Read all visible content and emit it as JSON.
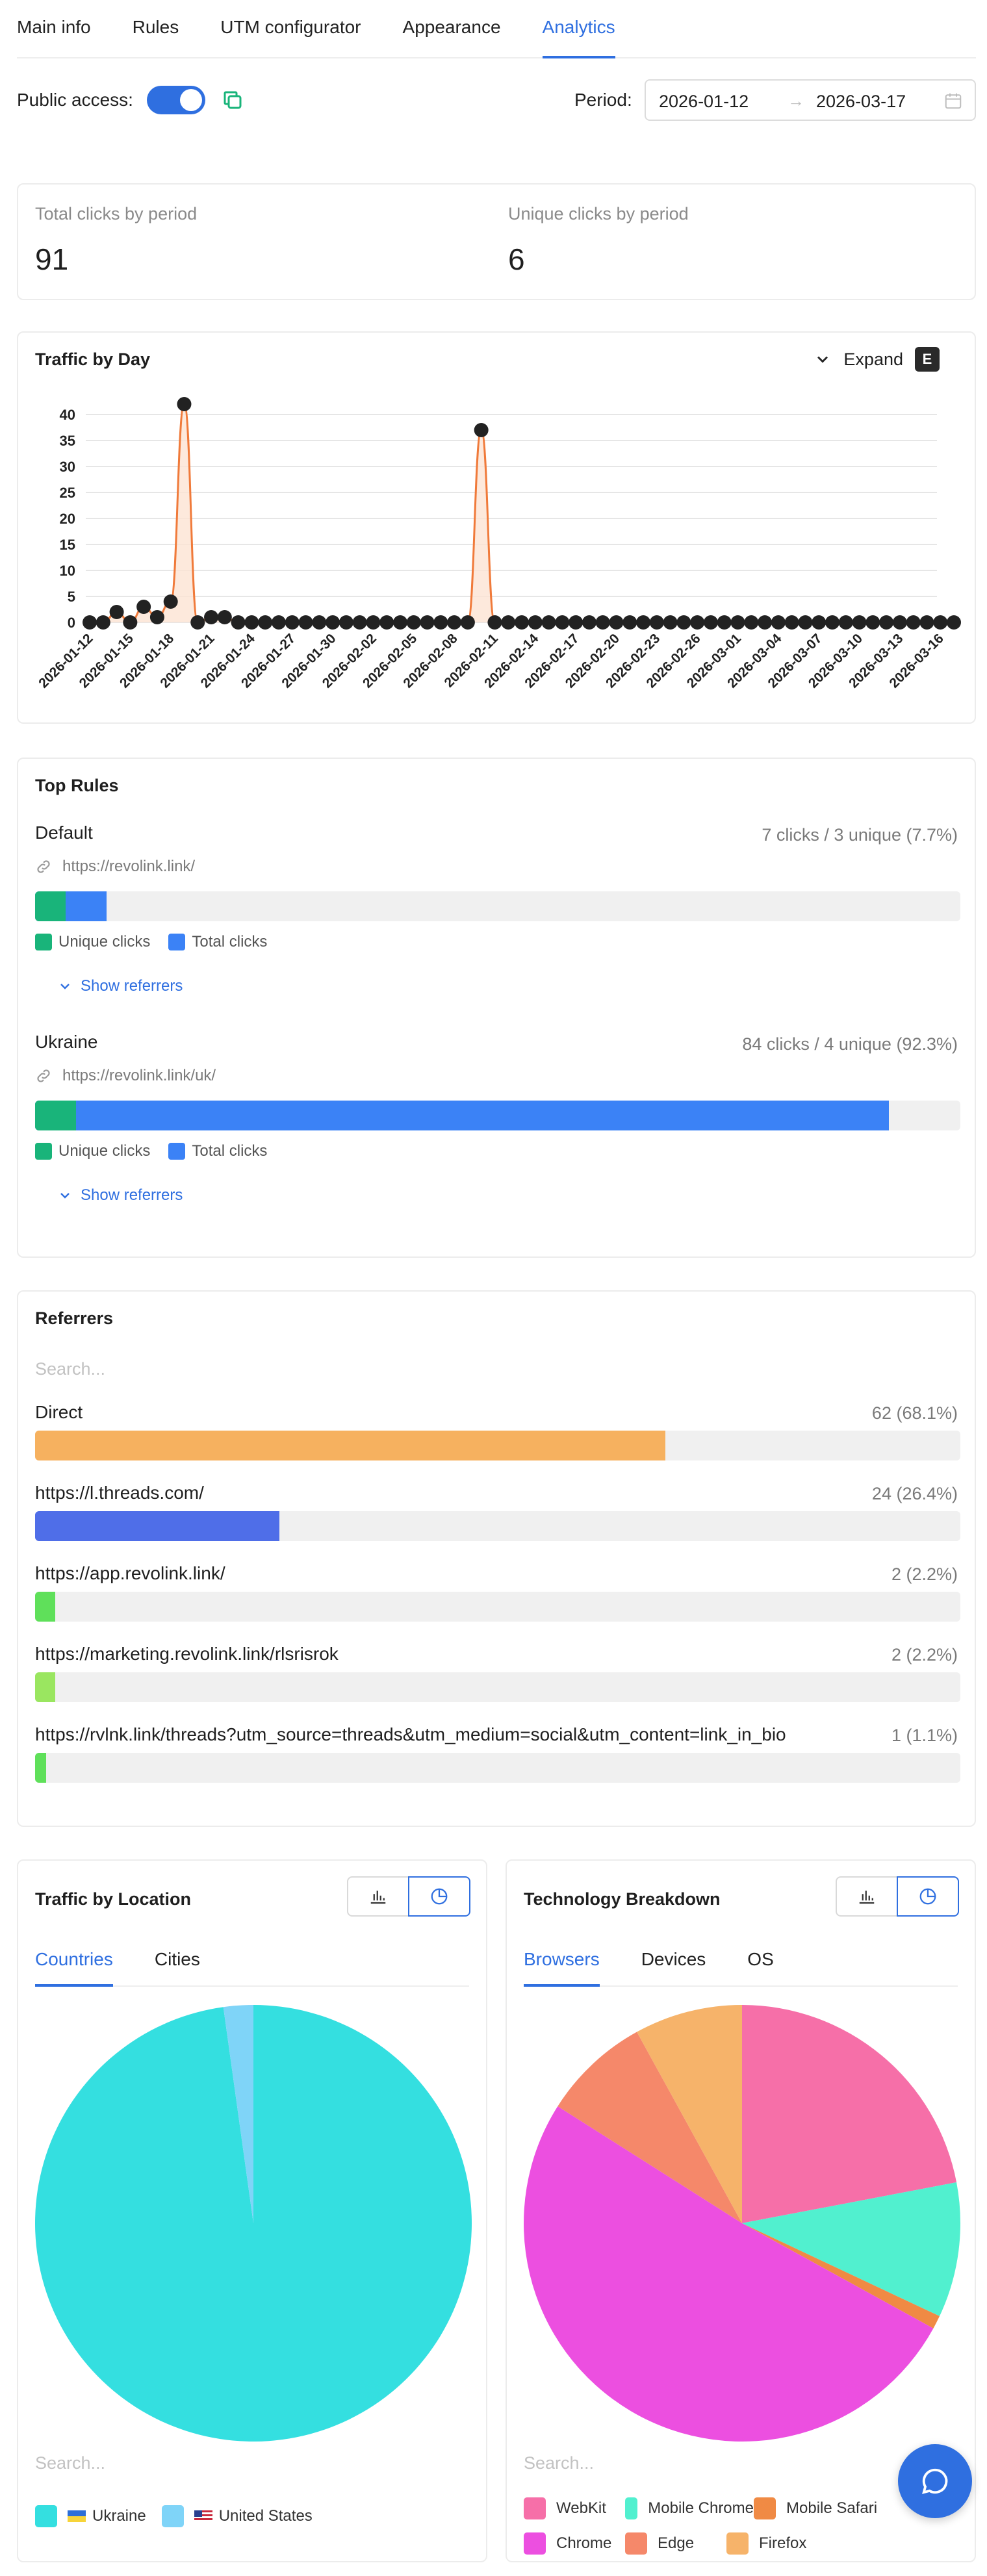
{
  "tabs": [
    {
      "label": "Main info",
      "active": false
    },
    {
      "label": "Rules",
      "active": false
    },
    {
      "label": "UTM configurator",
      "active": false
    },
    {
      "label": "Appearance",
      "active": false
    },
    {
      "label": "Analytics",
      "active": true
    }
  ],
  "access": {
    "label": "Public access:",
    "enabled": true
  },
  "period": {
    "label": "Period:",
    "from": "2026-01-12",
    "to": "2026-03-17",
    "arrow": "→"
  },
  "stats": {
    "total_label": "Total clicks by period",
    "total_value": "91",
    "unique_label": "Unique clicks by period",
    "unique_value": "6"
  },
  "traffic": {
    "title": "Traffic by Day",
    "expand_label": "Expand",
    "expand_key": "E",
    "chart_data": {
      "type": "area",
      "x": [
        "2026-01-12",
        "2026-01-13",
        "2026-01-14",
        "2026-01-15",
        "2026-01-16",
        "2026-01-17",
        "2026-01-18",
        "2026-01-19",
        "2026-01-20",
        "2026-01-21",
        "2026-01-22",
        "2026-01-23",
        "2026-01-24",
        "2026-01-25",
        "2026-01-26",
        "2026-01-27",
        "2026-01-28",
        "2026-01-29",
        "2026-01-30",
        "2026-01-31",
        "2026-02-01",
        "2026-02-02",
        "2026-02-03",
        "2026-02-04",
        "2026-02-05",
        "2026-02-06",
        "2026-02-07",
        "2026-02-08",
        "2026-02-09",
        "2026-02-10",
        "2026-02-11",
        "2026-02-12",
        "2026-02-13",
        "2026-02-14",
        "2026-02-15",
        "2026-02-16",
        "2026-02-17",
        "2026-02-18",
        "2026-02-19",
        "2026-02-20",
        "2026-02-21",
        "2026-02-22",
        "2026-02-23",
        "2026-02-24",
        "2026-02-25",
        "2026-02-26",
        "2026-02-27",
        "2026-02-28",
        "2026-03-01",
        "2026-03-02",
        "2026-03-03",
        "2026-03-04",
        "2026-03-05",
        "2026-03-06",
        "2026-03-07",
        "2026-03-08",
        "2026-03-09",
        "2026-03-10",
        "2026-03-11",
        "2026-03-12",
        "2026-03-13",
        "2026-03-14",
        "2026-03-15",
        "2026-03-16",
        "2026-03-17"
      ],
      "values": [
        0,
        0,
        2,
        0,
        3,
        1,
        4,
        42,
        0,
        1,
        1,
        0,
        0,
        0,
        0,
        0,
        0,
        0,
        0,
        0,
        0,
        0,
        0,
        0,
        0,
        0,
        0,
        0,
        0,
        37,
        0,
        0,
        0,
        0,
        0,
        0,
        0,
        0,
        0,
        0,
        0,
        0,
        0,
        0,
        0,
        0,
        0,
        0,
        0,
        0,
        0,
        0,
        0,
        0,
        0,
        0,
        0,
        0,
        0,
        0,
        0,
        0,
        0,
        0,
        0
      ],
      "x_tick_labels": [
        "2026-01-12",
        "2026-01-15",
        "2026-01-18",
        "2026-01-21",
        "2026-01-24",
        "2026-01-27",
        "2026-01-30",
        "2026-02-02",
        "2026-02-05",
        "2026-02-08",
        "2026-02-11",
        "2026-02-14",
        "2026-02-17",
        "2026-02-20",
        "2026-02-23",
        "2026-02-26",
        "2026-03-01",
        "2026-03-04",
        "2026-03-07",
        "2026-03-10",
        "2026-03-13",
        "2026-03-16"
      ],
      "y_ticks": [
        "0",
        "5",
        "10",
        "15",
        "20",
        "25",
        "30",
        "35",
        "40"
      ],
      "ylim": [
        0,
        42
      ],
      "grid": true,
      "line_color": "#f07a3a",
      "fill_color": "#fde3d3",
      "point_color": "#222222"
    }
  },
  "top_rules": {
    "title": "Top Rules",
    "unique_legend": "Unique clicks",
    "total_legend": "Total clicks",
    "show_referrers": "Show referrers",
    "items": [
      {
        "name": "Default",
        "stat": "7 clicks / 3 unique (7.7%)",
        "url": "https://revolink.link/",
        "total_fraction": 0.077,
        "unique_fraction": 0.033
      },
      {
        "name": "Ukraine",
        "stat": "84 clicks / 4 unique (92.3%)",
        "url": "https://revolink.link/uk/",
        "total_fraction": 0.923,
        "unique_fraction": 0.044
      }
    ]
  },
  "referrers": {
    "title": "Referrers",
    "search_placeholder": "Search...",
    "items": [
      {
        "label": "Direct",
        "value": "62 (68.1%)",
        "fraction": 0.681,
        "color": "#f6b15f"
      },
      {
        "label": "https://l.threads.com/",
        "value": "24 (26.4%)",
        "fraction": 0.264,
        "color": "#4f6ee8"
      },
      {
        "label": "https://app.revolink.link/",
        "value": "2 (2.2%)",
        "fraction": 0.022,
        "color": "#5fe05a"
      },
      {
        "label": "https://marketing.revolink.link/rlsrisrok",
        "value": "2 (2.2%)",
        "fraction": 0.022,
        "color": "#9ae660"
      },
      {
        "label": "https://rvlnk.link/threads?utm_source=threads&utm_medium=social&utm_content=link_in_bio",
        "value": "1 (1.1%)",
        "fraction": 0.011,
        "color": "#5fe05a"
      }
    ]
  },
  "location": {
    "title": "Traffic by Location",
    "tabs": [
      {
        "label": "Countries",
        "active": true
      },
      {
        "label": "Cities",
        "active": false
      }
    ],
    "search_placeholder": "Search...",
    "chart_data": {
      "type": "pie",
      "slices": [
        {
          "label": "Ukraine",
          "value": 97.8,
          "color": "#34dfe0"
        },
        {
          "label": "United States",
          "value": 2.2,
          "color": "#7fd4f8"
        }
      ]
    }
  },
  "technology": {
    "title": "Technology Breakdown",
    "tabs": [
      {
        "label": "Browsers",
        "active": true
      },
      {
        "label": "Devices",
        "active": false
      },
      {
        "label": "OS",
        "active": false
      }
    ],
    "search_placeholder": "Search...",
    "chart_data": {
      "type": "pie",
      "slices": [
        {
          "label": "WebKit",
          "value": 22,
          "color": "#f66fa8"
        },
        {
          "label": "Mobile Chrome",
          "value": 10,
          "color": "#51f0cf"
        },
        {
          "label": "Mobile Safari",
          "value": 1,
          "color": "#f08a44"
        },
        {
          "label": "Chrome",
          "value": 51,
          "color": "#ec4fe0"
        },
        {
          "label": "Edge",
          "value": 8,
          "color": "#f5886a"
        },
        {
          "label": "Firefox",
          "value": 8,
          "color": "#f6b36a"
        }
      ]
    }
  },
  "colors": {
    "accent": "#2f6fe0",
    "unique": "#19b47a",
    "total": "#3b82f6"
  }
}
